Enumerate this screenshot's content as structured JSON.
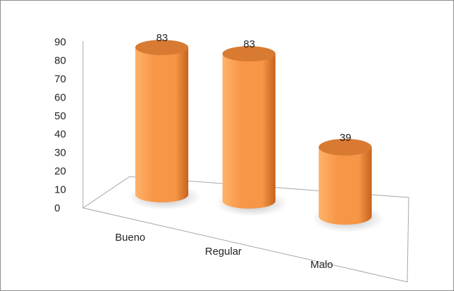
{
  "chart_data": {
    "type": "bar",
    "style": "3d-cylinder",
    "categories": [
      "Bueno",
      "Regular",
      "Malo"
    ],
    "values": [
      83,
      83,
      39
    ],
    "data_labels": [
      "83",
      "83",
      "39"
    ],
    "ylim": [
      0,
      90
    ],
    "yticks": [
      "0",
      "10",
      "20",
      "30",
      "40",
      "50",
      "60",
      "70",
      "80",
      "90"
    ],
    "grid": false,
    "legend": "none",
    "colors": {
      "bar_light": "#ffb36b",
      "bar_mid": "#f79646",
      "bar_dark": "#c5641f",
      "bar_top": "#d97a32",
      "axis": "#a6a6a6"
    }
  }
}
